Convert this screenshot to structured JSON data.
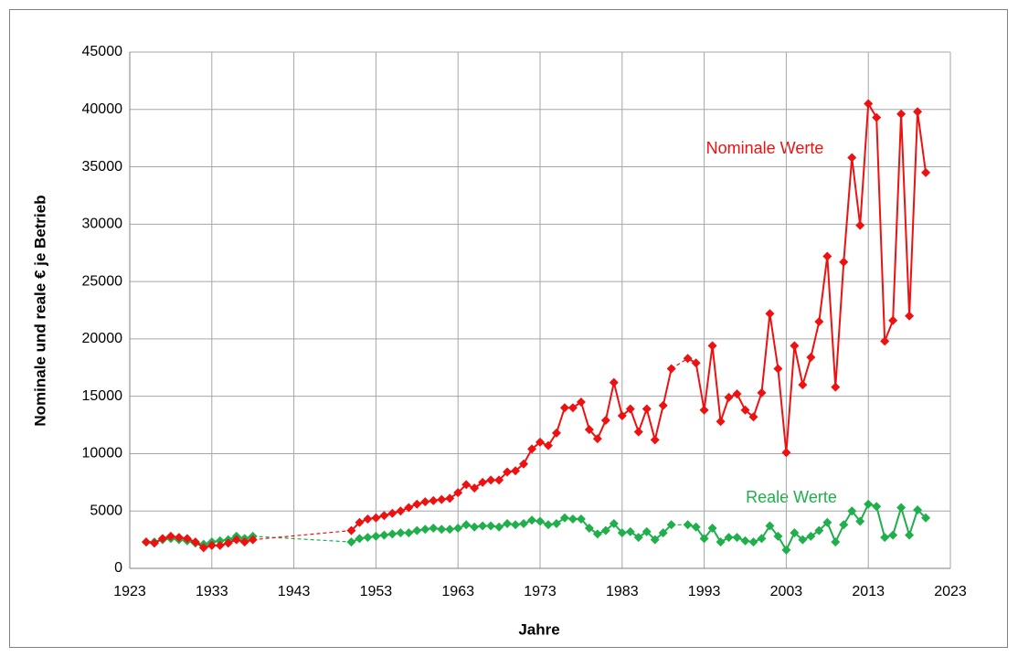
{
  "chart_data": {
    "type": "line",
    "x_label": "Jahre",
    "y_label": "Nominale und reale € je Betrieb",
    "annotations": [
      "Nominale Werte",
      "Reale Werte"
    ],
    "x": [
      1925,
      1926,
      1927,
      1928,
      1929,
      1930,
      1931,
      1932,
      1933,
      1934,
      1935,
      1936,
      1937,
      1938,
      1939,
      1940,
      1941,
      1942,
      1943,
      1944,
      1945,
      1946,
      1947,
      1948,
      1949,
      1950,
      1951,
      1952,
      1953,
      1954,
      1955,
      1956,
      1957,
      1958,
      1959,
      1960,
      1961,
      1962,
      1963,
      1964,
      1965,
      1966,
      1967,
      1968,
      1969,
      1970,
      1971,
      1972,
      1973,
      1974,
      1975,
      1976,
      1977,
      1978,
      1979,
      1980,
      1981,
      1982,
      1983,
      1984,
      1985,
      1986,
      1987,
      1988,
      1989,
      1990,
      1991,
      1992,
      1993,
      1994,
      1995,
      1996,
      1997,
      1998,
      1999,
      2000,
      2001,
      2002,
      2003,
      2004,
      2005,
      2006,
      2007,
      2008,
      2009,
      2010,
      2011,
      2012,
      2013,
      2014,
      2015,
      2016,
      2017,
      2018,
      2019,
      2020
    ],
    "series": [
      {
        "name": "Reale Werte",
        "color": "#1faf4b",
        "values": [
          2300,
          2300,
          2500,
          2600,
          2500,
          2400,
          2200,
          2100,
          2300,
          2400,
          2500,
          2800,
          2600,
          2800,
          null,
          null,
          null,
          null,
          null,
          null,
          null,
          null,
          null,
          null,
          null,
          2300,
          2600,
          2700,
          2800,
          2900,
          3000,
          3100,
          3100,
          3300,
          3400,
          3500,
          3400,
          3400,
          3500,
          3800,
          3600,
          3700,
          3700,
          3600,
          3900,
          3800,
          3900,
          4200,
          4100,
          3800,
          3900,
          4400,
          4300,
          4300,
          3500,
          3000,
          3300,
          3900,
          3100,
          3200,
          2700,
          3200,
          2500,
          3100,
          3800,
          null,
          3800,
          3600,
          2600,
          3500,
          2300,
          2700,
          2700,
          2400,
          2300,
          2600,
          3700,
          2800,
          1600,
          3100,
          2500,
          2800,
          3300,
          4000,
          2300,
          3800,
          5000,
          4100,
          5600,
          5400,
          2700,
          2900,
          5300,
          2900,
          5100,
          4400
        ]
      },
      {
        "name": "Nominale Werte",
        "color": "#ee1111",
        "values": [
          2300,
          2200,
          2600,
          2800,
          2700,
          2600,
          2300,
          1800,
          2000,
          2000,
          2200,
          2500,
          2300,
          2500,
          null,
          null,
          null,
          null,
          null,
          null,
          null,
          null,
          null,
          null,
          null,
          3300,
          4000,
          4300,
          4400,
          4600,
          4800,
          5000,
          5300,
          5600,
          5800,
          5900,
          6000,
          6100,
          6600,
          7300,
          7000,
          7500,
          7700,
          7700,
          8400,
          8500,
          9100,
          10400,
          11000,
          10700,
          11800,
          14000,
          14000,
          14500,
          12100,
          11300,
          12900,
          16200,
          13300,
          13900,
          11900,
          13900,
          11200,
          14200,
          17400,
          null,
          18300,
          17900,
          13800,
          19400,
          12800,
          14900,
          15200,
          13800,
          13200,
          15300,
          22200,
          17400,
          10100,
          19400,
          16000,
          18400,
          21500,
          27200,
          15800,
          26700,
          35800,
          29900,
          40500,
          39300,
          19800,
          21600,
          39600,
          22000,
          39800,
          34500
        ]
      }
    ],
    "xlim": [
      1923,
      2023
    ],
    "xticks": [
      1923,
      1933,
      1943,
      1953,
      1963,
      1973,
      1983,
      1993,
      2003,
      2013,
      2023
    ],
    "ylim": [
      0,
      45000
    ],
    "yticks": [
      0,
      5000,
      10000,
      15000,
      20000,
      25000,
      30000,
      35000,
      40000,
      45000
    ],
    "grid": true
  }
}
